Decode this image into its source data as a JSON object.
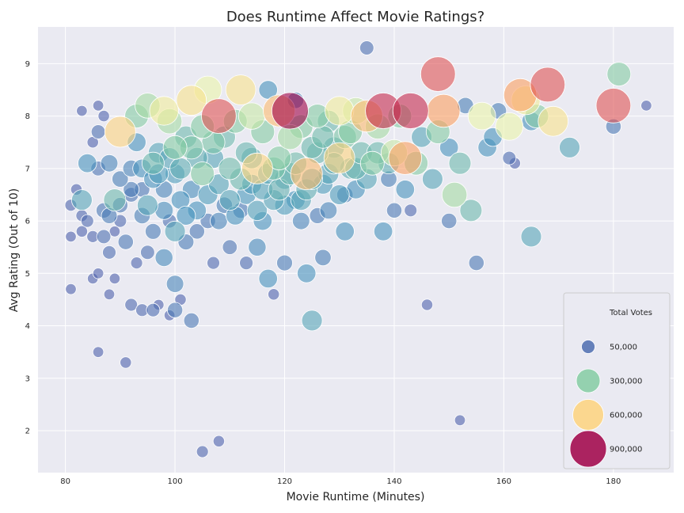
{
  "chart_data": {
    "type": "scatter",
    "title": "Does Runtime Affect Movie Ratings?",
    "xlabel": "Movie Runtime (Minutes)",
    "ylabel": "Avg Rating (Out of 10)",
    "xlim": [
      75,
      191
    ],
    "ylim": [
      1.2,
      9.7
    ],
    "xticks": [
      80,
      100,
      120,
      140,
      160,
      180
    ],
    "yticks": [
      2,
      3,
      4,
      5,
      6,
      7,
      8,
      9
    ],
    "grid": true,
    "background_color": "#eaeaf2",
    "legend": {
      "title": "Total Votes",
      "position": "lower-right",
      "entries": [
        {
          "label": "50,000",
          "votes": 50000
        },
        {
          "label": "300,000",
          "votes": 300000
        },
        {
          "label": "600,000",
          "votes": 600000
        },
        {
          "label": "900,000",
          "votes": 900000
        }
      ]
    },
    "points_note": "Representative sample of the dense point cloud; each point = [runtime, rating, total_votes]",
    "points": [
      [
        81,
        4.7,
        20000
      ],
      [
        81,
        5.7,
        20000
      ],
      [
        81,
        6.3,
        30000
      ],
      [
        82,
        6.6,
        25000
      ],
      [
        83,
        6.4,
        200000
      ],
      [
        83,
        6.1,
        30000
      ],
      [
        83,
        5.8,
        25000
      ],
      [
        83,
        8.1,
        20000
      ],
      [
        84,
        7.1,
        150000
      ],
      [
        84,
        6.0,
        40000
      ],
      [
        85,
        5.7,
        30000
      ],
      [
        85,
        7.5,
        25000
      ],
      [
        85,
        4.9,
        20000
      ],
      [
        86,
        8.2,
        20000
      ],
      [
        86,
        7.7,
        60000
      ],
      [
        86,
        5.0,
        20000
      ],
      [
        86,
        3.5,
        20000
      ],
      [
        86,
        7.0,
        70000
      ],
      [
        87,
        6.2,
        80000
      ],
      [
        87,
        5.7,
        60000
      ],
      [
        87,
        8.0,
        25000
      ],
      [
        88,
        4.6,
        20000
      ],
      [
        88,
        5.4,
        50000
      ],
      [
        88,
        7.1,
        120000
      ],
      [
        88,
        6.1,
        90000
      ],
      [
        89,
        6.4,
        250000
      ],
      [
        89,
        5.8,
        20000
      ],
      [
        89,
        4.9,
        20000
      ],
      [
        90,
        6.0,
        40000
      ],
      [
        90,
        7.7,
        600000
      ],
      [
        90,
        6.8,
        100000
      ],
      [
        91,
        3.3,
        25000
      ],
      [
        91,
        5.6,
        80000
      ],
      [
        92,
        7.0,
        110000
      ],
      [
        92,
        4.4,
        40000
      ],
      [
        92,
        6.5,
        70000
      ],
      [
        93,
        5.2,
        30000
      ],
      [
        93,
        7.5,
        150000
      ],
      [
        93,
        8.0,
        300000
      ],
      [
        94,
        4.3,
        40000
      ],
      [
        94,
        6.6,
        80000
      ],
      [
        94,
        7.0,
        150000
      ],
      [
        95,
        8.2,
        350000
      ],
      [
        95,
        5.4,
        60000
      ],
      [
        95,
        6.3,
        200000
      ],
      [
        96,
        4.3,
        50000
      ],
      [
        96,
        5.8,
        90000
      ],
      [
        96,
        7.1,
        250000
      ],
      [
        97,
        4.4,
        20000
      ],
      [
        97,
        7.3,
        200000
      ],
      [
        98,
        6.6,
        120000
      ],
      [
        98,
        5.3,
        130000
      ],
      [
        98,
        8.1,
        500000
      ],
      [
        99,
        4.2,
        20000
      ],
      [
        99,
        6.0,
        60000
      ],
      [
        99,
        7.9,
        350000
      ],
      [
        100,
        4.8,
        120000
      ],
      [
        100,
        4.3,
        80000
      ],
      [
        100,
        5.8,
        200000
      ],
      [
        100,
        7.4,
        300000
      ],
      [
        101,
        4.5,
        25000
      ],
      [
        101,
        6.4,
        150000
      ],
      [
        102,
        5.6,
        90000
      ],
      [
        102,
        7.6,
        250000
      ],
      [
        103,
        4.1,
        80000
      ],
      [
        103,
        6.6,
        140000
      ],
      [
        103,
        8.3,
        550000
      ],
      [
        104,
        5.8,
        80000
      ],
      [
        104,
        7.2,
        220000
      ],
      [
        105,
        1.6,
        30000
      ],
      [
        105,
        6.9,
        300000
      ],
      [
        106,
        8.5,
        450000
      ],
      [
        106,
        6.0,
        80000
      ],
      [
        107,
        5.2,
        40000
      ],
      [
        107,
        7.5,
        280000
      ],
      [
        108,
        1.8,
        25000
      ],
      [
        108,
        8.0,
        800000
      ],
      [
        108,
        6.7,
        200000
      ],
      [
        109,
        6.3,
        100000
      ],
      [
        110,
        7.0,
        260000
      ],
      [
        110,
        5.5,
        70000
      ],
      [
        111,
        7.9,
        300000
      ],
      [
        112,
        8.5,
        550000
      ],
      [
        112,
        6.2,
        90000
      ],
      [
        113,
        5.2,
        50000
      ],
      [
        113,
        7.3,
        240000
      ],
      [
        114,
        8.0,
        400000
      ],
      [
        114,
        6.7,
        180000
      ],
      [
        115,
        5.5,
        130000
      ],
      [
        115,
        7.0,
        600000
      ],
      [
        116,
        6.0,
        150000
      ],
      [
        116,
        7.7,
        300000
      ],
      [
        117,
        8.5,
        150000
      ],
      [
        117,
        4.9,
        150000
      ],
      [
        118,
        4.6,
        25000
      ],
      [
        118,
        6.4,
        200000
      ],
      [
        119,
        8.1,
        650000
      ],
      [
        119,
        7.2,
        300000
      ],
      [
        120,
        5.2,
        90000
      ],
      [
        120,
        6.8,
        200000
      ],
      [
        121,
        8.1,
        900000
      ],
      [
        121,
        7.6,
        350000
      ],
      [
        122,
        6.4,
        160000
      ],
      [
        122,
        8.3,
        100000
      ],
      [
        123,
        6.0,
        120000
      ],
      [
        123,
        7.8,
        300000
      ],
      [
        124,
        5.0,
        150000
      ],
      [
        124,
        6.9,
        650000
      ],
      [
        125,
        4.1,
        200000
      ],
      [
        125,
        7.4,
        250000
      ],
      [
        126,
        6.1,
        90000
      ],
      [
        126,
        8.0,
        300000
      ],
      [
        127,
        5.3,
        100000
      ],
      [
        127,
        6.7,
        180000
      ],
      [
        128,
        7.9,
        250000
      ],
      [
        128,
        6.2,
        120000
      ],
      [
        129,
        7.4,
        220000
      ],
      [
        130,
        8.1,
        500000
      ],
      [
        130,
        7.2,
        600000
      ],
      [
        131,
        5.8,
        150000
      ],
      [
        131,
        6.5,
        100000
      ],
      [
        132,
        7.7,
        300000
      ],
      [
        133,
        8.1,
        400000
      ],
      [
        133,
        6.6,
        150000
      ],
      [
        134,
        7.3,
        250000
      ],
      [
        135,
        9.3,
        60000
      ],
      [
        135,
        8.0,
        650000
      ],
      [
        136,
        7.1,
        300000
      ],
      [
        137,
        7.8,
        350000
      ],
      [
        138,
        8.1,
        850000
      ],
      [
        138,
        5.8,
        150000
      ],
      [
        139,
        6.8,
        100000
      ],
      [
        140,
        7.3,
        400000
      ],
      [
        140,
        6.2,
        80000
      ],
      [
        141,
        8.0,
        300000
      ],
      [
        142,
        7.2,
        700000
      ],
      [
        142,
        6.6,
        150000
      ],
      [
        143,
        8.1,
        850000
      ],
      [
        143,
        6.2,
        40000
      ],
      [
        144,
        7.1,
        300000
      ],
      [
        145,
        7.6,
        200000
      ],
      [
        146,
        4.4,
        25000
      ],
      [
        147,
        6.8,
        200000
      ],
      [
        148,
        8.8,
        800000
      ],
      [
        148,
        7.7,
        300000
      ],
      [
        149,
        8.1,
        700000
      ],
      [
        150,
        6.0,
        80000
      ],
      [
        150,
        7.4,
        150000
      ],
      [
        151,
        6.5,
        350000
      ],
      [
        152,
        2.2,
        20000
      ],
      [
        152,
        7.1,
        250000
      ],
      [
        153,
        8.2,
        100000
      ],
      [
        154,
        6.2,
        250000
      ],
      [
        155,
        5.2,
        80000
      ],
      [
        156,
        8.0,
        450000
      ],
      [
        157,
        7.4,
        150000
      ],
      [
        158,
        7.6,
        150000
      ],
      [
        159,
        8.1,
        100000
      ],
      [
        161,
        7.8,
        450000
      ],
      [
        161,
        7.2,
        50000
      ],
      [
        162,
        7.1,
        25000
      ],
      [
        163,
        8.4,
        700000
      ],
      [
        164,
        8.3,
        500000
      ],
      [
        165,
        5.7,
        200000
      ],
      [
        165,
        7.9,
        150000
      ],
      [
        166,
        8.0,
        300000
      ],
      [
        168,
        8.6,
        800000
      ],
      [
        169,
        7.9,
        550000
      ],
      [
        172,
        7.4,
        200000
      ],
      [
        180,
        8.2,
        800000
      ],
      [
        180,
        7.8,
        80000
      ],
      [
        181,
        8.8,
        300000
      ],
      [
        186,
        8.2,
        20000
      ],
      [
        104,
        6.2,
        150000
      ],
      [
        106,
        6.5,
        180000
      ],
      [
        108,
        6.0,
        120000
      ],
      [
        110,
        6.4,
        200000
      ],
      [
        112,
        6.8,
        250000
      ],
      [
        114,
        7.2,
        220000
      ],
      [
        116,
        6.6,
        200000
      ],
      [
        118,
        7.0,
        280000
      ],
      [
        120,
        6.3,
        180000
      ],
      [
        122,
        7.1,
        260000
      ],
      [
        124,
        6.6,
        220000
      ],
      [
        126,
        7.3,
        240000
      ],
      [
        128,
        6.9,
        200000
      ],
      [
        130,
        6.5,
        180000
      ],
      [
        132,
        7.0,
        220000
      ],
      [
        96,
        6.8,
        150000
      ],
      [
        98,
        6.2,
        140000
      ],
      [
        100,
        6.9,
        180000
      ],
      [
        102,
        6.1,
        160000
      ],
      [
        94,
        6.1,
        100000
      ],
      [
        92,
        6.6,
        90000
      ],
      [
        90,
        6.3,
        80000
      ],
      [
        111,
        6.1,
        150000
      ],
      [
        113,
        6.5,
        170000
      ],
      [
        115,
        6.2,
        190000
      ],
      [
        117,
        6.9,
        210000
      ],
      [
        119,
        6.6,
        230000
      ],
      [
        121,
        6.9,
        250000
      ],
      [
        123,
        6.4,
        200000
      ],
      [
        125,
        6.8,
        220000
      ],
      [
        107,
        7.2,
        200000
      ],
      [
        109,
        7.6,
        250000
      ],
      [
        105,
        7.8,
        300000
      ],
      [
        103,
        7.4,
        280000
      ],
      [
        101,
        7.0,
        220000
      ],
      [
        99,
        7.2,
        200000
      ],
      [
        97,
        6.9,
        180000
      ],
      [
        127,
        7.6,
        260000
      ],
      [
        129,
        7.1,
        230000
      ],
      [
        131,
        7.6,
        280000
      ],
      [
        133,
        7.0,
        240000
      ],
      [
        135,
        6.8,
        200000
      ],
      [
        137,
        7.3,
        250000
      ],
      [
        139,
        7.1,
        220000
      ]
    ]
  }
}
